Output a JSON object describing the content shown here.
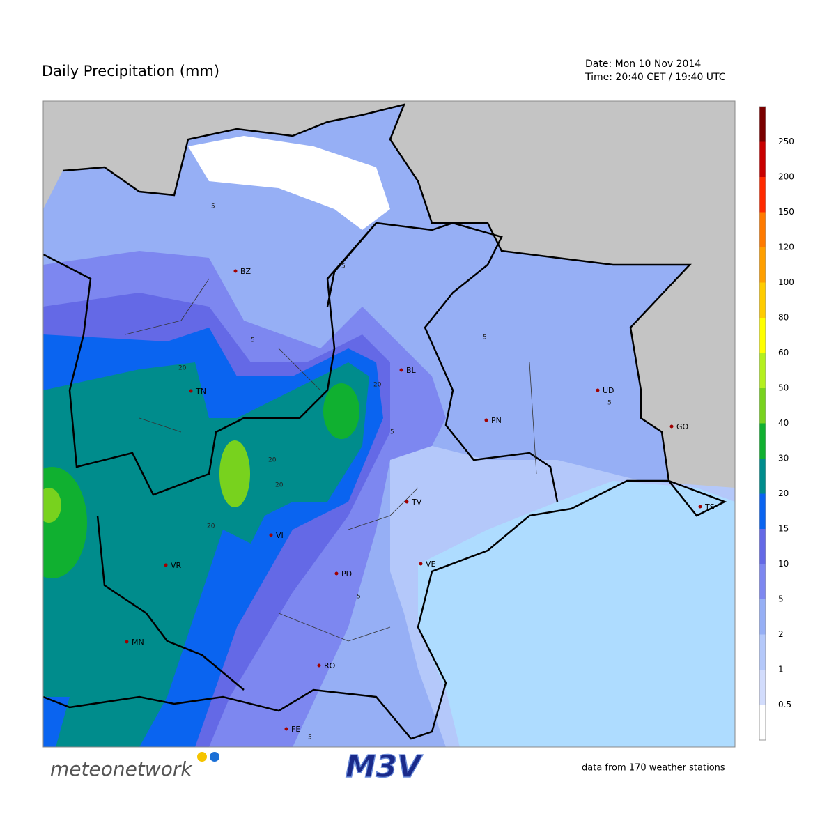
{
  "header": {
    "title": "Daily Precipitation (mm)",
    "date": "Date: Mon 10 Nov 2014",
    "time": "Time: 20:40 CET / 19:40 UTC"
  },
  "map": {
    "cities": [
      "BZ",
      "TN",
      "BL",
      "UD",
      "PN",
      "GO",
      "TV",
      "VI",
      "VR",
      "PD",
      "VE",
      "MN",
      "RO",
      "TS",
      "FE"
    ],
    "contour_labels": [
      "5",
      "5",
      "5",
      "5",
      "5",
      "5",
      "5",
      "5",
      "20",
      "20",
      "20",
      "20",
      "20"
    ]
  },
  "legend": {
    "ticks": [
      "250",
      "200",
      "150",
      "120",
      "100",
      "80",
      "60",
      "50",
      "40",
      "30",
      "20",
      "15",
      "10",
      "5",
      "2",
      "1",
      "0.5"
    ],
    "colors": [
      "#7a0000",
      "#c80000",
      "#ff2a00",
      "#ff7a00",
      "#ff9f00",
      "#ffcc00",
      "#ffff00",
      "#b4f01e",
      "#78d21e",
      "#10b030",
      "#008c8c",
      "#0a64f0",
      "#6469e6",
      "#7d87f0",
      "#96aff5",
      "#b4c8fa",
      "#d2dcfc",
      "#ffffff"
    ]
  },
  "footer": {
    "logo": "meteonetwork",
    "logo2": "M3V",
    "note": "data from 170 weather stations"
  }
}
